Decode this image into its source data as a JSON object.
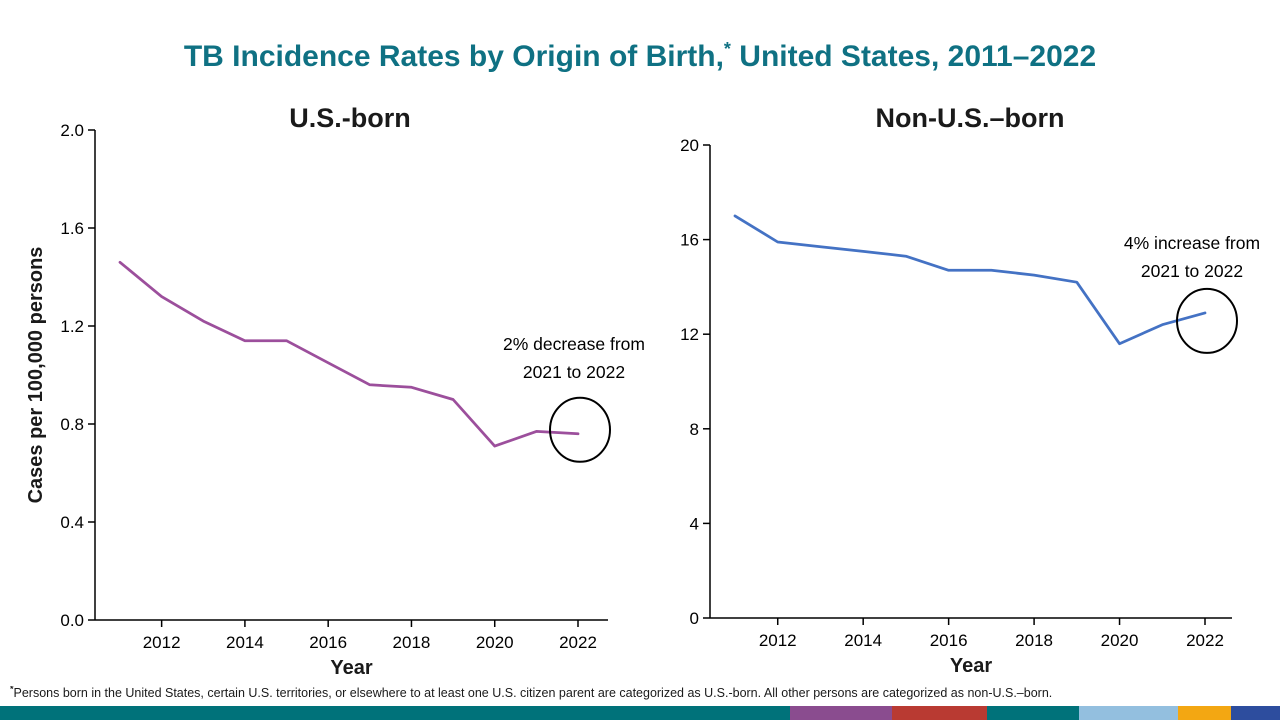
{
  "page": {
    "title": {
      "part1": "TB Incidence Rates by Origin of Birth,",
      "superscript": "*",
      "part2": " United States, 2011–2022",
      "color": "#0f7183"
    },
    "footnote": {
      "symbol": "*",
      "text": "Persons born in the United States, certain U.S. territories, or elsewhere to at least one U.S. citizen parent are categorized as U.S.-born. All other persons are categorized as non-U.S.–born."
    },
    "footer_bar": {
      "segments": [
        {
          "name": "teal",
          "color": "#00727a",
          "width_pct": 61.7
        },
        {
          "name": "purple",
          "color": "#8a4c8f",
          "width_pct": 8.0
        },
        {
          "name": "red",
          "color": "#b93a32",
          "width_pct": 7.4
        },
        {
          "name": "teal-2",
          "color": "#00727a",
          "width_pct": 7.2
        },
        {
          "name": "light-blue",
          "color": "#93bfdf",
          "width_pct": 7.7
        },
        {
          "name": "orange",
          "color": "#f3a712",
          "width_pct": 4.2
        },
        {
          "name": "navy",
          "color": "#2d4d9e",
          "width_pct": 3.8
        }
      ]
    }
  },
  "chart_data": [
    {
      "type": "line",
      "title": "U.S.-born",
      "xlabel": "Year",
      "ylabel": "Cases per 100,000 persons",
      "x": [
        2011,
        2012,
        2013,
        2014,
        2015,
        2016,
        2017,
        2018,
        2019,
        2020,
        2021,
        2022
      ],
      "values": [
        1.46,
        1.32,
        1.22,
        1.14,
        1.14,
        1.05,
        0.96,
        0.95,
        0.9,
        0.71,
        0.77,
        0.76
      ],
      "ylim": [
        0,
        2.0
      ],
      "yticks": [
        0.0,
        0.4,
        0.8,
        1.2,
        1.6,
        2.0
      ],
      "ytick_labels": [
        "0.0",
        "0.4",
        "0.8",
        "1.2",
        "1.6",
        "2.0"
      ],
      "xticks": [
        2012,
        2014,
        2016,
        2018,
        2020,
        2022
      ],
      "line_color": "#9c4f9c",
      "grid": false,
      "legend": null,
      "annotation": {
        "lines": [
          "2% decrease from",
          "2021 to 2022"
        ],
        "circled": "last-point"
      }
    },
    {
      "type": "line",
      "title": "Non-U.S.–born",
      "xlabel": "Year",
      "ylabel": "",
      "x": [
        2011,
        2012,
        2013,
        2014,
        2015,
        2016,
        2017,
        2018,
        2019,
        2020,
        2021,
        2022
      ],
      "values": [
        17.0,
        15.9,
        15.7,
        15.5,
        15.3,
        14.7,
        14.7,
        14.5,
        14.2,
        11.6,
        12.4,
        12.9
      ],
      "ylim": [
        0,
        20
      ],
      "yticks": [
        0,
        4,
        8,
        12,
        16,
        20
      ],
      "ytick_labels": [
        "0",
        "4",
        "8",
        "12",
        "16",
        "20"
      ],
      "xticks": [
        2012,
        2014,
        2016,
        2018,
        2020,
        2022
      ],
      "line_color": "#4472c4",
      "grid": false,
      "legend": null,
      "annotation": {
        "lines": [
          "4% increase from",
          "2021 to 2022"
        ],
        "circled": "last-point"
      }
    }
  ]
}
